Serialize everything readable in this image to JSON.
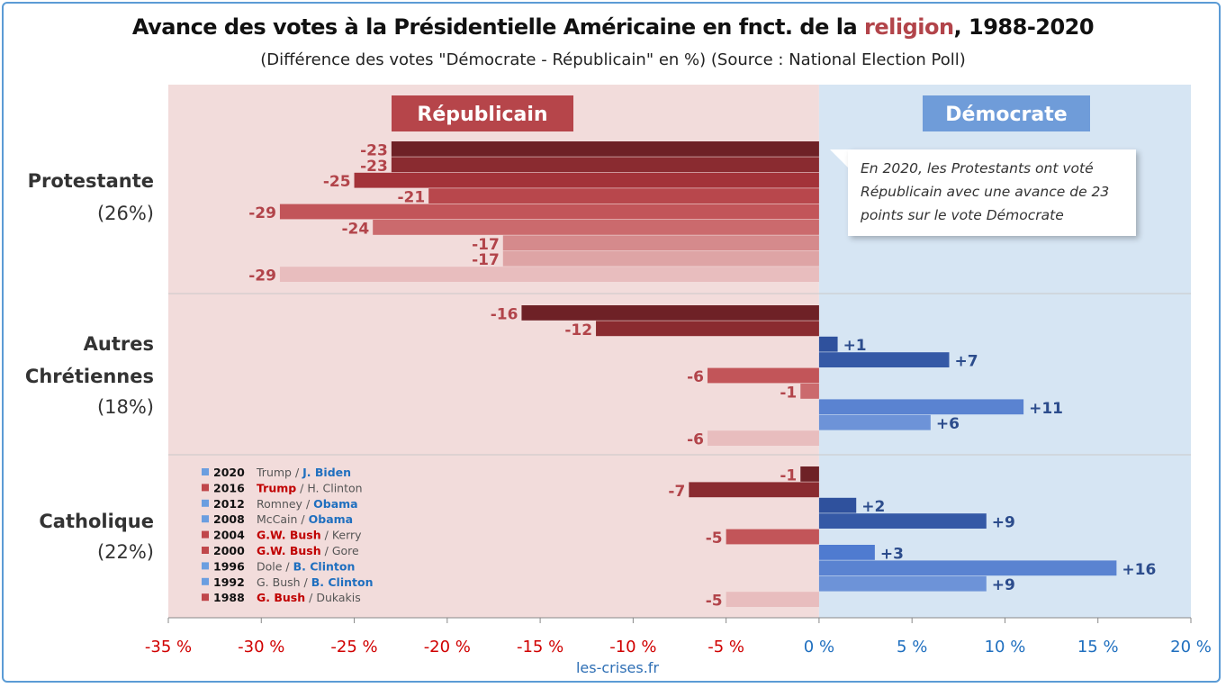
{
  "title": {
    "before": "Avance des votes à la Présidentielle Américaine en fnct. de la ",
    "highlight": "religion",
    "after": ", 1988-2020"
  },
  "subtitle": "(Différence des votes \"Démocrate - Républicain\" en %) (Source : National Election Poll)",
  "source": "les-crises.fr",
  "banners": {
    "republican": "Républicain",
    "democrat": "Démocrate"
  },
  "callout": "En 2020, les Protestants ont voté Républicain avec une avance de 23 points sur le vote Démocrate",
  "colors": {
    "rep_bg": "#f2dcdb",
    "dem_bg": "#d6e5f3",
    "rep_banner": "#b6454a",
    "dem_banner": "#6f9cd9",
    "rep_text": "#b2444a",
    "dem_text": "#2c4c8c",
    "axis_rep": "#d00000",
    "axis_dem": "#1f6fbf"
  },
  "chart_data": {
    "type": "bar",
    "orientation": "horizontal",
    "xlim": [
      -35,
      20
    ],
    "x_ticks": [
      -35,
      -30,
      -25,
      -20,
      -15,
      -10,
      -5,
      0,
      5,
      10,
      15,
      20
    ],
    "x_tick_labels": [
      "-35 %",
      "-30 %",
      "-25 %",
      "-20 %",
      "-15 %",
      "-10 %",
      "-5 %",
      "0 %",
      "5 %",
      "10 %",
      "15 %",
      "20 %"
    ],
    "years": [
      "2020",
      "2016",
      "2012",
      "2008",
      "2004",
      "2000",
      "1996",
      "1992",
      "1988"
    ],
    "categories": [
      {
        "label_lines": [
          "Protestante"
        ],
        "share": "(26%)",
        "values": [
          -23,
          -23,
          -25,
          -21,
          -29,
          -24,
          -17,
          -17,
          -29
        ]
      },
      {
        "label_lines": [
          "Autres",
          "Chrétiennes"
        ],
        "share": "(18%)",
        "values": [
          -16,
          -12,
          1,
          7,
          -6,
          -1,
          11,
          6,
          -6
        ]
      },
      {
        "label_lines": [
          "Catholique"
        ],
        "share": "(22%)",
        "values": [
          -1,
          -7,
          2,
          9,
          -5,
          3,
          16,
          9,
          -5
        ]
      }
    ],
    "value_labels": [
      [
        "-23",
        "-23",
        "-25",
        "-21",
        "-29",
        "-24",
        "-17",
        "-17",
        "-29"
      ],
      [
        "-16",
        "-12",
        "+1",
        "+7",
        "-6",
        "-1",
        "+11",
        "+6",
        "-6"
      ],
      [
        "-1",
        "-7",
        "+2",
        "+9",
        "-5",
        "+3",
        "+16",
        "+9",
        "-5"
      ]
    ],
    "bar_colors_rep": [
      "#6e2126",
      "#8a2b30",
      "#a33339",
      "#b8474c",
      "#c25559",
      "#cb6a6d",
      "#d58a8c",
      "#dea4a5",
      "#e8bdbe"
    ],
    "bar_colors_dem": [
      "#203e7d",
      "#28468d",
      "#2f519d",
      "#3559a6",
      "#4a72c6",
      "#4f7bd0",
      "#5a83d1",
      "#6d93d8",
      "#86a6de"
    ],
    "legend": [
      {
        "year": "2020",
        "rep": "Trump",
        "dem": "J. Biden",
        "winner": "dem",
        "color": "#6b9ee0"
      },
      {
        "year": "2016",
        "rep": "Trump",
        "dem": "H. Clinton",
        "winner": "rep",
        "color": "#c0474b"
      },
      {
        "year": "2012",
        "rep": "Romney",
        "dem": "Obama",
        "winner": "dem",
        "color": "#6b9ee0"
      },
      {
        "year": "2008",
        "rep": "McCain",
        "dem": "Obama",
        "winner": "dem",
        "color": "#6b9ee0"
      },
      {
        "year": "2004",
        "rep": "G.W. Bush",
        "dem": "Kerry",
        "winner": "rep",
        "color": "#c0474b"
      },
      {
        "year": "2000",
        "rep": "G.W. Bush",
        "dem": "Gore",
        "winner": "rep",
        "color": "#c0474b"
      },
      {
        "year": "1996",
        "rep": "Dole",
        "dem": "B. Clinton",
        "winner": "dem",
        "color": "#6b9ee0"
      },
      {
        "year": "1992",
        "rep": "G. Bush",
        "dem": "B. Clinton",
        "winner": "dem",
        "color": "#6b9ee0"
      },
      {
        "year": "1988",
        "rep": "G. Bush",
        "dem": "Dukakis",
        "winner": "rep",
        "color": "#c0474b"
      }
    ]
  }
}
